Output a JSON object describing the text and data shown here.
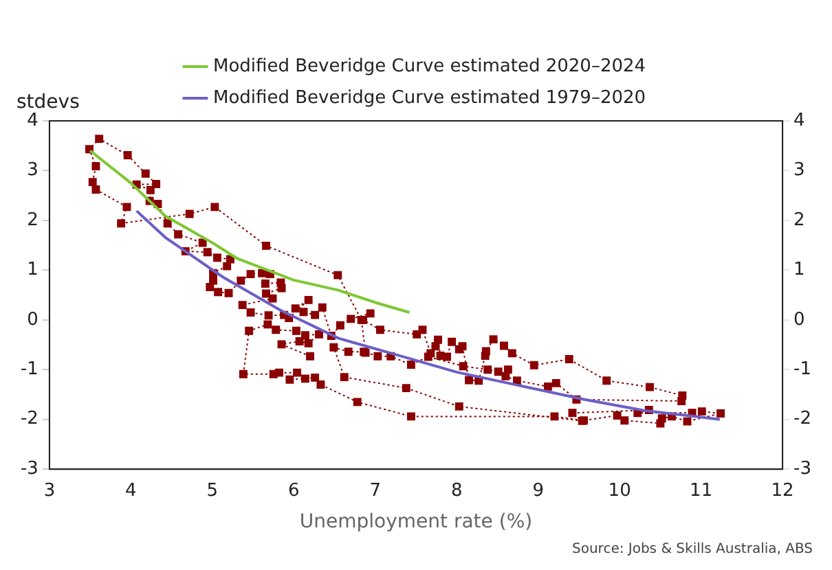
{
  "chart_data": {
    "type": "line",
    "ylabel": "stdevs",
    "xlabel": "Unemployment rate (%)",
    "xlim": [
      3,
      12
    ],
    "xticks": [
      3,
      4,
      5,
      6,
      7,
      8,
      9,
      10,
      11,
      12
    ],
    "ylim": [
      -3,
      4
    ],
    "yticks": [
      -3,
      -2,
      -1,
      0,
      1,
      2,
      3,
      4
    ],
    "y2lim": [
      -3,
      4
    ],
    "y2ticks": [
      -3,
      -2,
      -1,
      0,
      1,
      2,
      3,
      4
    ],
    "legend": "top",
    "grid": false,
    "annotations": [
      "Source: Jobs & Skills Australia, ABS"
    ],
    "series": [
      {
        "type": "line",
        "marker": "square",
        "line_style": "dotted",
        "color": "#8b0000",
        "x": [
          6.2,
          5.85,
          6.07,
          6.18,
          6.31,
          6.14,
          6.03,
          5.78,
          5.68,
          5.45,
          5.38,
          5.75,
          5.82,
          6.04,
          5.95,
          6.14,
          6.26,
          6.33,
          6.78,
          7.44,
          9.2,
          9.56,
          9.97,
          10.06,
          10.5,
          10.52,
          10.64,
          10.83,
          11.24,
          11.01,
          10.89,
          10.22,
          10.36,
          9.42,
          9.54,
          8.03,
          7.38,
          6.62,
          6.49,
          6.67,
          6.86,
          7.03,
          7.19,
          7.44,
          7.65,
          8.08,
          8.38,
          8.51,
          8.63,
          8.6,
          8.74,
          9.12,
          9.22,
          9.47,
          10.76,
          10.77,
          10.37,
          9.84,
          9.38,
          8.95,
          8.68,
          8.58,
          8.45,
          8.36,
          8.35,
          8.27,
          8.15,
          8.07,
          8.03,
          7.94,
          7.88,
          7.8,
          7.77,
          7.74,
          7.68,
          7.58,
          7.51,
          7.06,
          6.85,
          6.94,
          6.7,
          6.57,
          6.46,
          6.35,
          6.26,
          6.12,
          6.02,
          6.18,
          5.94,
          5.88,
          5.69,
          5.47,
          5.37,
          5.74,
          5.66,
          5.85,
          5.84,
          5.65,
          5.71,
          5.61,
          5.47,
          5.35,
          5.2,
          5.07,
          4.97,
          5.01,
          5.01,
          5.18,
          5.22,
          5.06,
          4.94,
          4.67,
          4.88,
          4.58,
          4.45,
          4.33,
          4.23,
          4.24,
          4.07,
          4.31,
          4.18,
          3.96,
          3.61,
          3.49,
          3.57,
          3.53,
          3.57,
          3.95,
          3.88,
          4.72,
          5.03,
          5.66,
          6.54,
          6.83,
          6.88
        ],
        "values": [
          -0.73,
          -0.49,
          -0.43,
          -0.47,
          -0.29,
          -0.31,
          -0.22,
          -0.2,
          -0.09,
          -0.22,
          -1.09,
          -1.09,
          -1.06,
          -1.06,
          -1.2,
          -1.18,
          -1.16,
          -1.3,
          -1.65,
          -1.94,
          -1.94,
          -2.02,
          -1.92,
          -2.02,
          -2.08,
          -1.98,
          -1.94,
          -2.04,
          -1.88,
          -1.84,
          -1.87,
          -1.87,
          -1.81,
          -1.87,
          -2.03,
          -1.74,
          -1.37,
          -1.15,
          -0.55,
          -0.64,
          -0.64,
          -0.73,
          -0.73,
          -0.9,
          -0.74,
          -0.93,
          -1.0,
          -1.04,
          -1.0,
          -1.13,
          -1.22,
          -1.34,
          -1.27,
          -1.6,
          -1.63,
          -1.52,
          -1.35,
          -1.22,
          -0.79,
          -0.91,
          -0.67,
          -0.52,
          -0.39,
          -0.63,
          -0.72,
          -1.22,
          -1.21,
          -0.53,
          -0.59,
          -0.44,
          -0.74,
          -0.72,
          -0.4,
          -0.53,
          -0.67,
          -0.2,
          -0.29,
          -0.2,
          0.0,
          0.13,
          0.02,
          -0.11,
          -0.32,
          0.25,
          0.1,
          0.16,
          0.23,
          0.4,
          0.04,
          0.1,
          0.09,
          0.15,
          0.3,
          0.43,
          0.53,
          0.64,
          0.75,
          0.73,
          0.92,
          0.94,
          0.92,
          0.79,
          0.54,
          0.56,
          0.66,
          0.79,
          0.94,
          1.08,
          1.22,
          1.25,
          1.36,
          1.38,
          1.55,
          1.72,
          1.94,
          2.33,
          2.39,
          2.61,
          2.72,
          2.73,
          2.94,
          3.31,
          3.64,
          3.43,
          3.09,
          2.77,
          2.62,
          2.27,
          1.94,
          2.13,
          2.27,
          1.49,
          0.9,
          0.0,
          -0.66
        ]
      },
      {
        "type": "line",
        "marker": "none",
        "name": "Modified Beveridge Curve estimated 2020–2024",
        "color": "#7dc832",
        "x": [
          3.5,
          4.0,
          4.42,
          5.0,
          5.31,
          6.0,
          6.54,
          7.0,
          7.42
        ],
        "values": [
          3.4,
          2.75,
          2.09,
          1.55,
          1.23,
          0.8,
          0.6,
          0.35,
          0.15
        ]
      },
      {
        "type": "line",
        "marker": "none",
        "name": "Modified Beveridge Curve estimated 1979–2020",
        "color": "#6b5fc7",
        "x": [
          4.07,
          4.42,
          5.13,
          5.84,
          6.55,
          7.26,
          8.0,
          9.0,
          9.57,
          10.3,
          11.23
        ],
        "values": [
          2.19,
          1.66,
          0.86,
          0.19,
          -0.37,
          -0.7,
          -1.05,
          -1.4,
          -1.6,
          -1.82,
          -2.0
        ]
      }
    ]
  }
}
